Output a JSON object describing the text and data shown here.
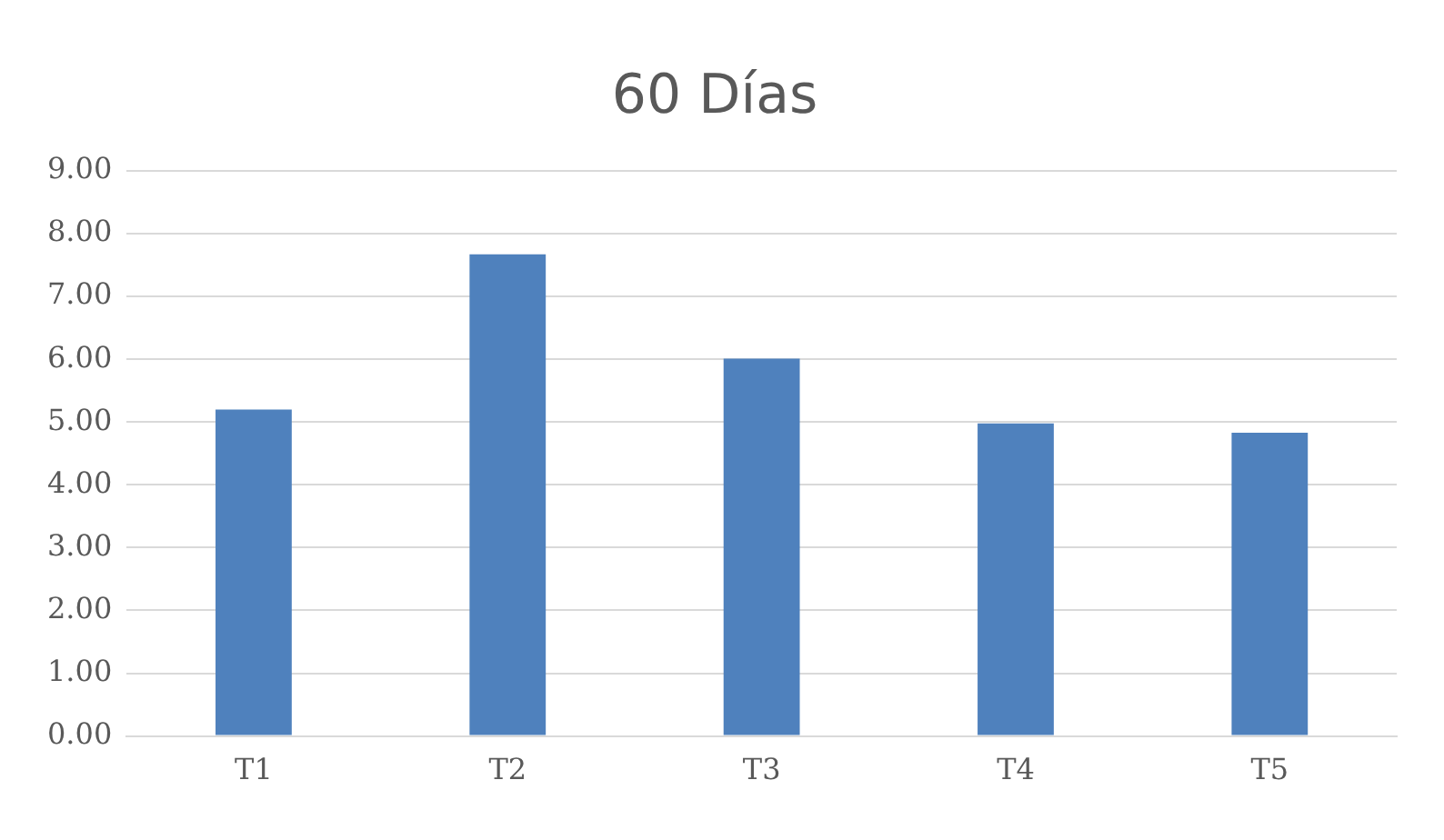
{
  "chart_data": {
    "type": "bar",
    "title": "60 Días",
    "categories": [
      "T1",
      "T2",
      "T3",
      "T4",
      "T5"
    ],
    "values": [
      5.2,
      7.67,
      6.01,
      4.98,
      4.83
    ],
    "color": "#4f81bd",
    "ylim": [
      0,
      9
    ],
    "yticks": [
      {
        "value": 0,
        "label": "0.00"
      },
      {
        "value": 1,
        "label": "1.00"
      },
      {
        "value": 2,
        "label": "2.00"
      },
      {
        "value": 3,
        "label": "3.00"
      },
      {
        "value": 4,
        "label": "4.00"
      },
      {
        "value": 5,
        "label": "5.00"
      },
      {
        "value": 6,
        "label": "6.00"
      },
      {
        "value": 7,
        "label": "7.00"
      },
      {
        "value": 8,
        "label": "8.00"
      },
      {
        "value": 9,
        "label": "9.00"
      }
    ],
    "grid": "y"
  }
}
